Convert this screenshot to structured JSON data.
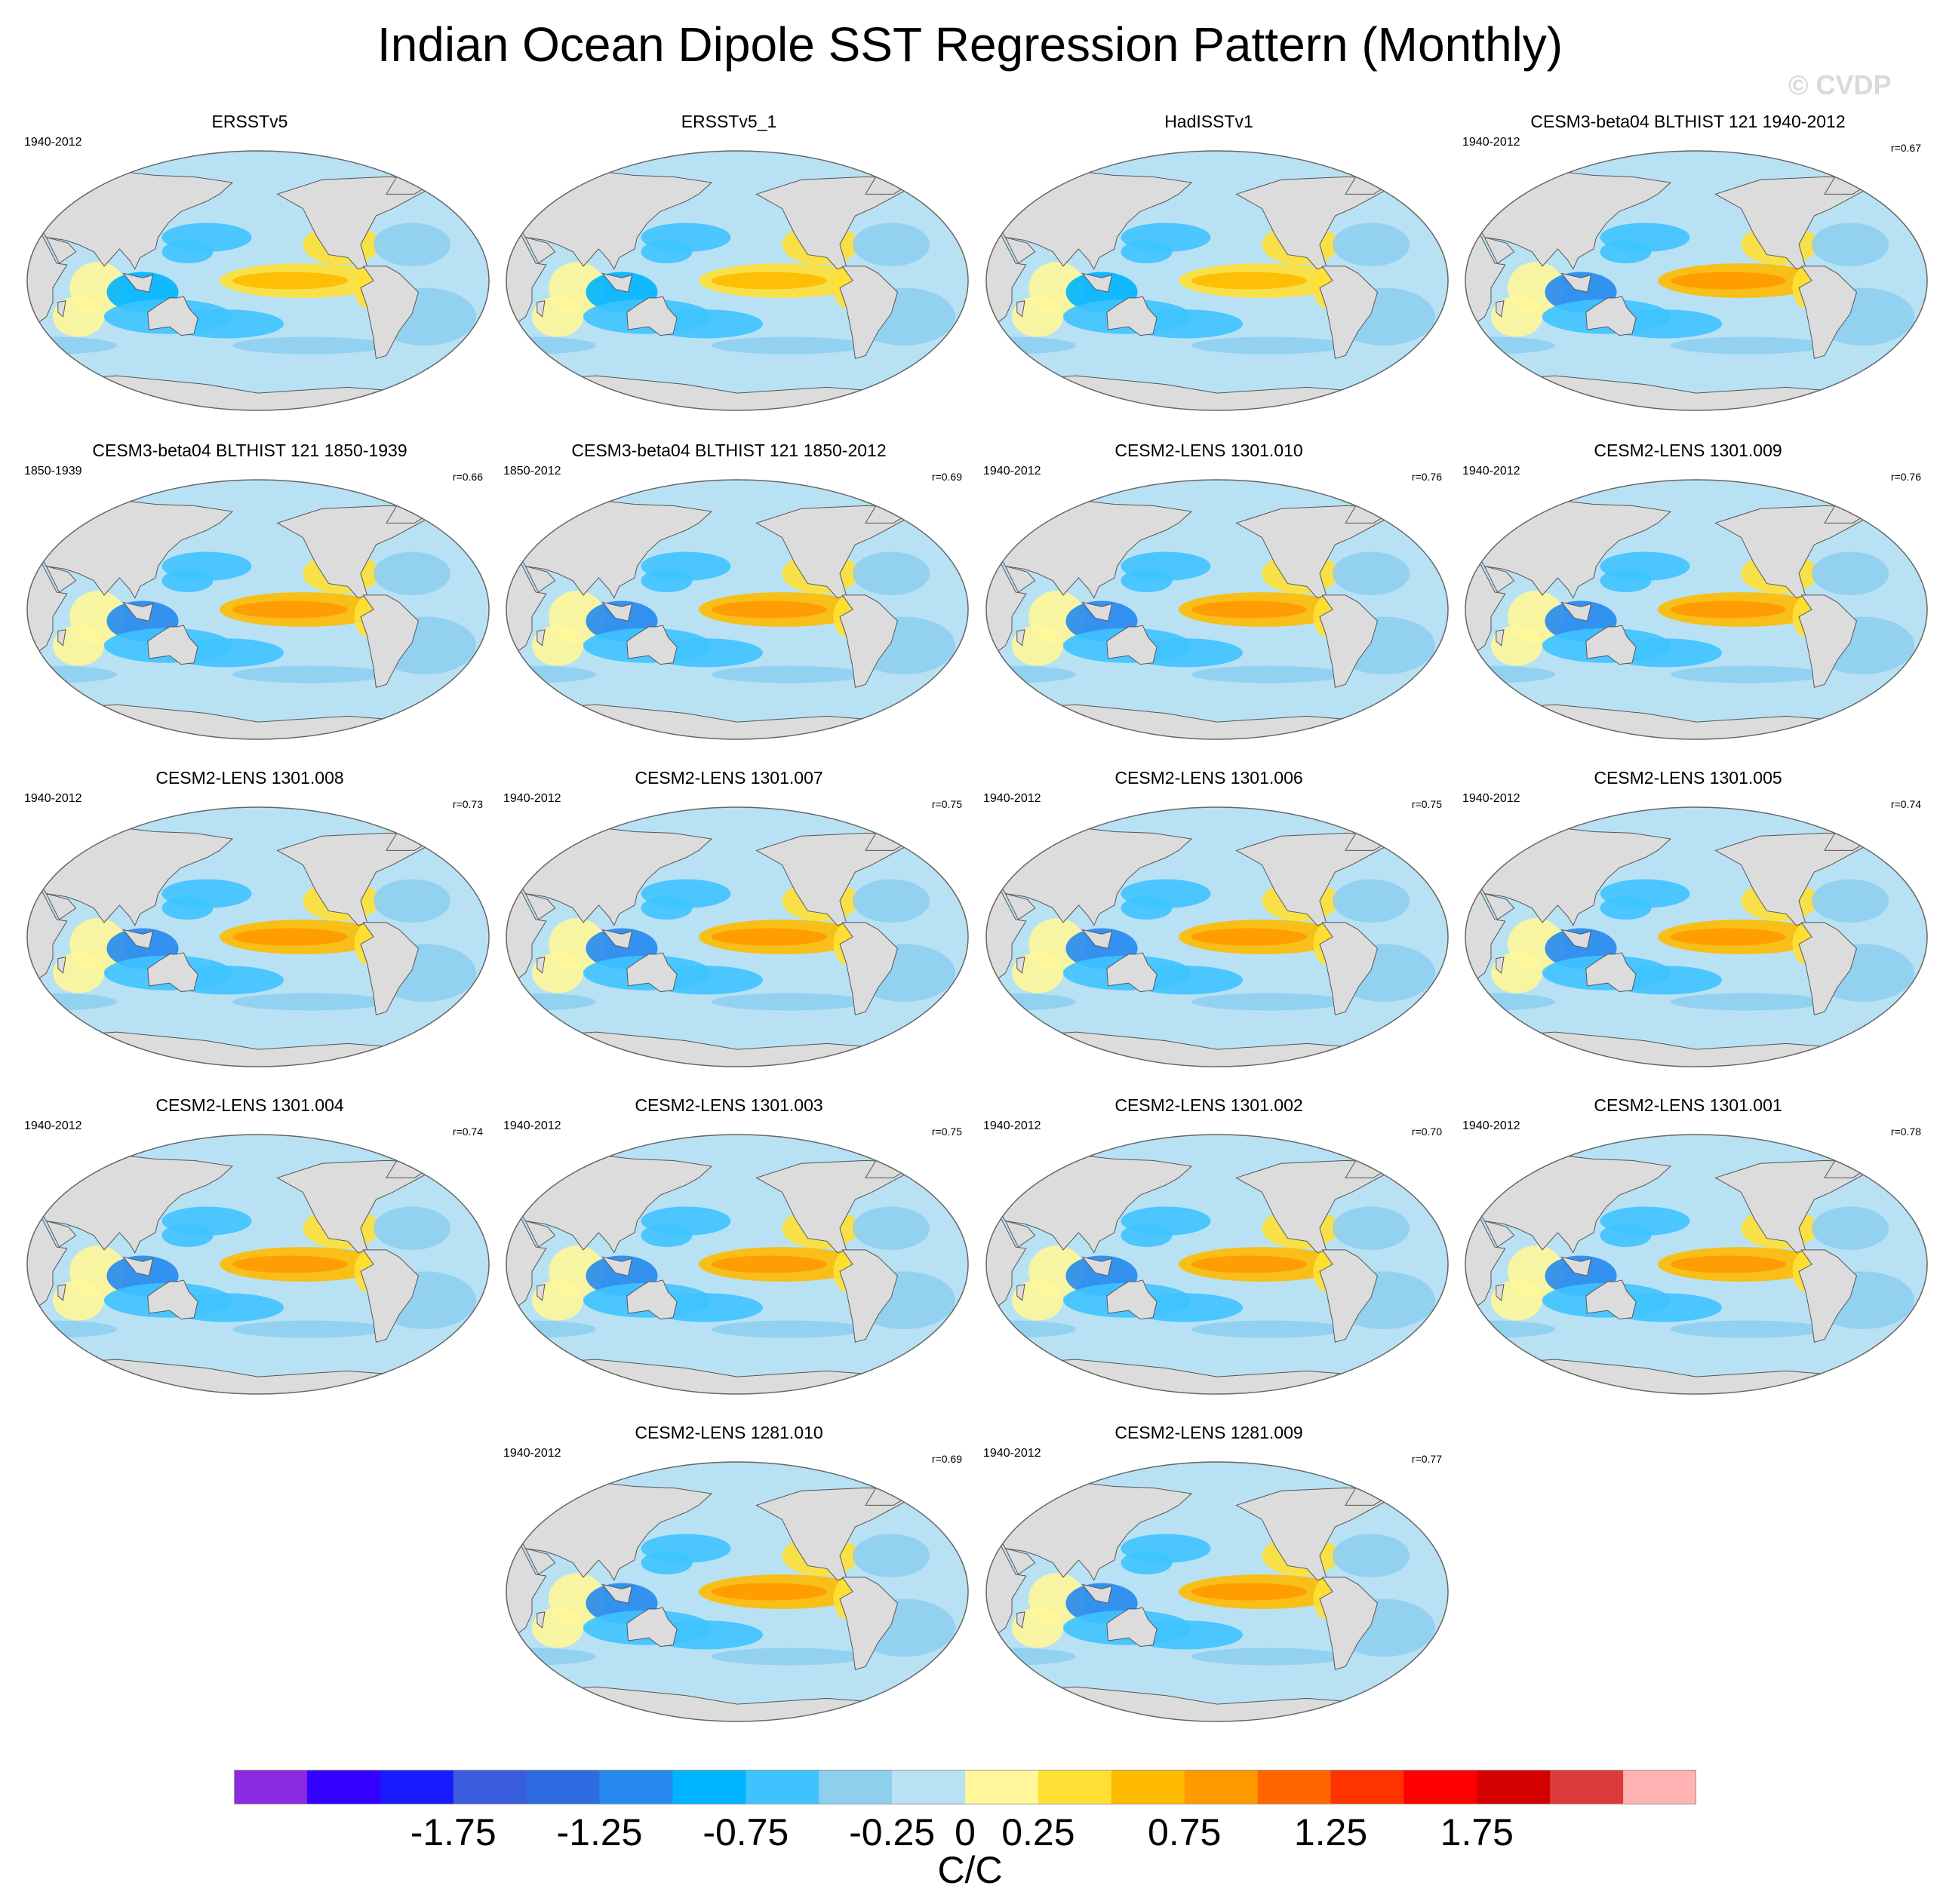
{
  "title": "Indian Ocean Dipole SST Regression Pattern (Monthly)",
  "watermark": "© CVDP",
  "chart_data": {
    "type": "map",
    "projection": "Robinson (global)",
    "variable": "SST regression onto IOD index",
    "units": "C/C",
    "panels": [
      {
        "title": "ERSSTv5",
        "period": "1940-2012",
        "r": null
      },
      {
        "title": "ERSSTv5_1",
        "period": "",
        "r": null
      },
      {
        "title": "HadISSTv1",
        "period": "",
        "r": null
      },
      {
        "title": "CESM3-beta04 BLTHIST 121 1940-2012",
        "period": "1940-2012",
        "r": "r=0.67"
      },
      {
        "title": "CESM3-beta04 BLTHIST 121 1850-1939",
        "period": "1850-1939",
        "r": "r=0.66"
      },
      {
        "title": "CESM3-beta04 BLTHIST 121 1850-2012",
        "period": "1850-2012",
        "r": "r=0.69"
      },
      {
        "title": "CESM2-LENS 1301.010",
        "period": "1940-2012",
        "r": "r=0.76"
      },
      {
        "title": "CESM2-LENS 1301.009",
        "period": "1940-2012",
        "r": "r=0.76"
      },
      {
        "title": "CESM2-LENS 1301.008",
        "period": "1940-2012",
        "r": "r=0.73"
      },
      {
        "title": "CESM2-LENS 1301.007",
        "period": "1940-2012",
        "r": "r=0.75"
      },
      {
        "title": "CESM2-LENS 1301.006",
        "period": "1940-2012",
        "r": "r=0.75"
      },
      {
        "title": "CESM2-LENS 1301.005",
        "period": "1940-2012",
        "r": "r=0.74"
      },
      {
        "title": "CESM2-LENS 1301.004",
        "period": "1940-2012",
        "r": "r=0.74"
      },
      {
        "title": "CESM2-LENS 1301.003",
        "period": "1940-2012",
        "r": "r=0.75"
      },
      {
        "title": "CESM2-LENS 1301.002",
        "period": "1940-2012",
        "r": "r=0.70"
      },
      {
        "title": "CESM2-LENS 1301.001",
        "period": "1940-2012",
        "r": "r=0.78"
      },
      {
        "title": "CESM2-LENS 1281.010",
        "period": "1940-2012",
        "r": "r=0.69"
      },
      {
        "title": "CESM2-LENS 1281.009",
        "period": "1940-2012",
        "r": "r=0.77"
      }
    ],
    "colorbar": {
      "levels": [
        -2.0,
        -1.75,
        -1.5,
        -1.25,
        -1.0,
        -0.75,
        -0.5,
        -0.25,
        0,
        0.25,
        0.5,
        0.75,
        1.0,
        1.25,
        1.5,
        1.75,
        2.0
      ],
      "colors": [
        "#8a2be2",
        "#3300ff",
        "#1a1aff",
        "#3a5ddd",
        "#2f6be0",
        "#2589f0",
        "#00b5ff",
        "#3fc3ff",
        "#8ecfee",
        "#b9e1f4",
        "#fff799",
        "#ffe135",
        "#ffbb00",
        "#ff9900",
        "#ff6600",
        "#ff3300",
        "#ff0000",
        "#d40000",
        "#dd3b3b",
        "#ffb3b3"
      ],
      "tick_labels": [
        "-1.75",
        "-1.25",
        "-0.75",
        "-0.25",
        "0",
        "0.25",
        "0.75",
        "1.25",
        "1.75"
      ],
      "units_label": "C/C"
    }
  }
}
